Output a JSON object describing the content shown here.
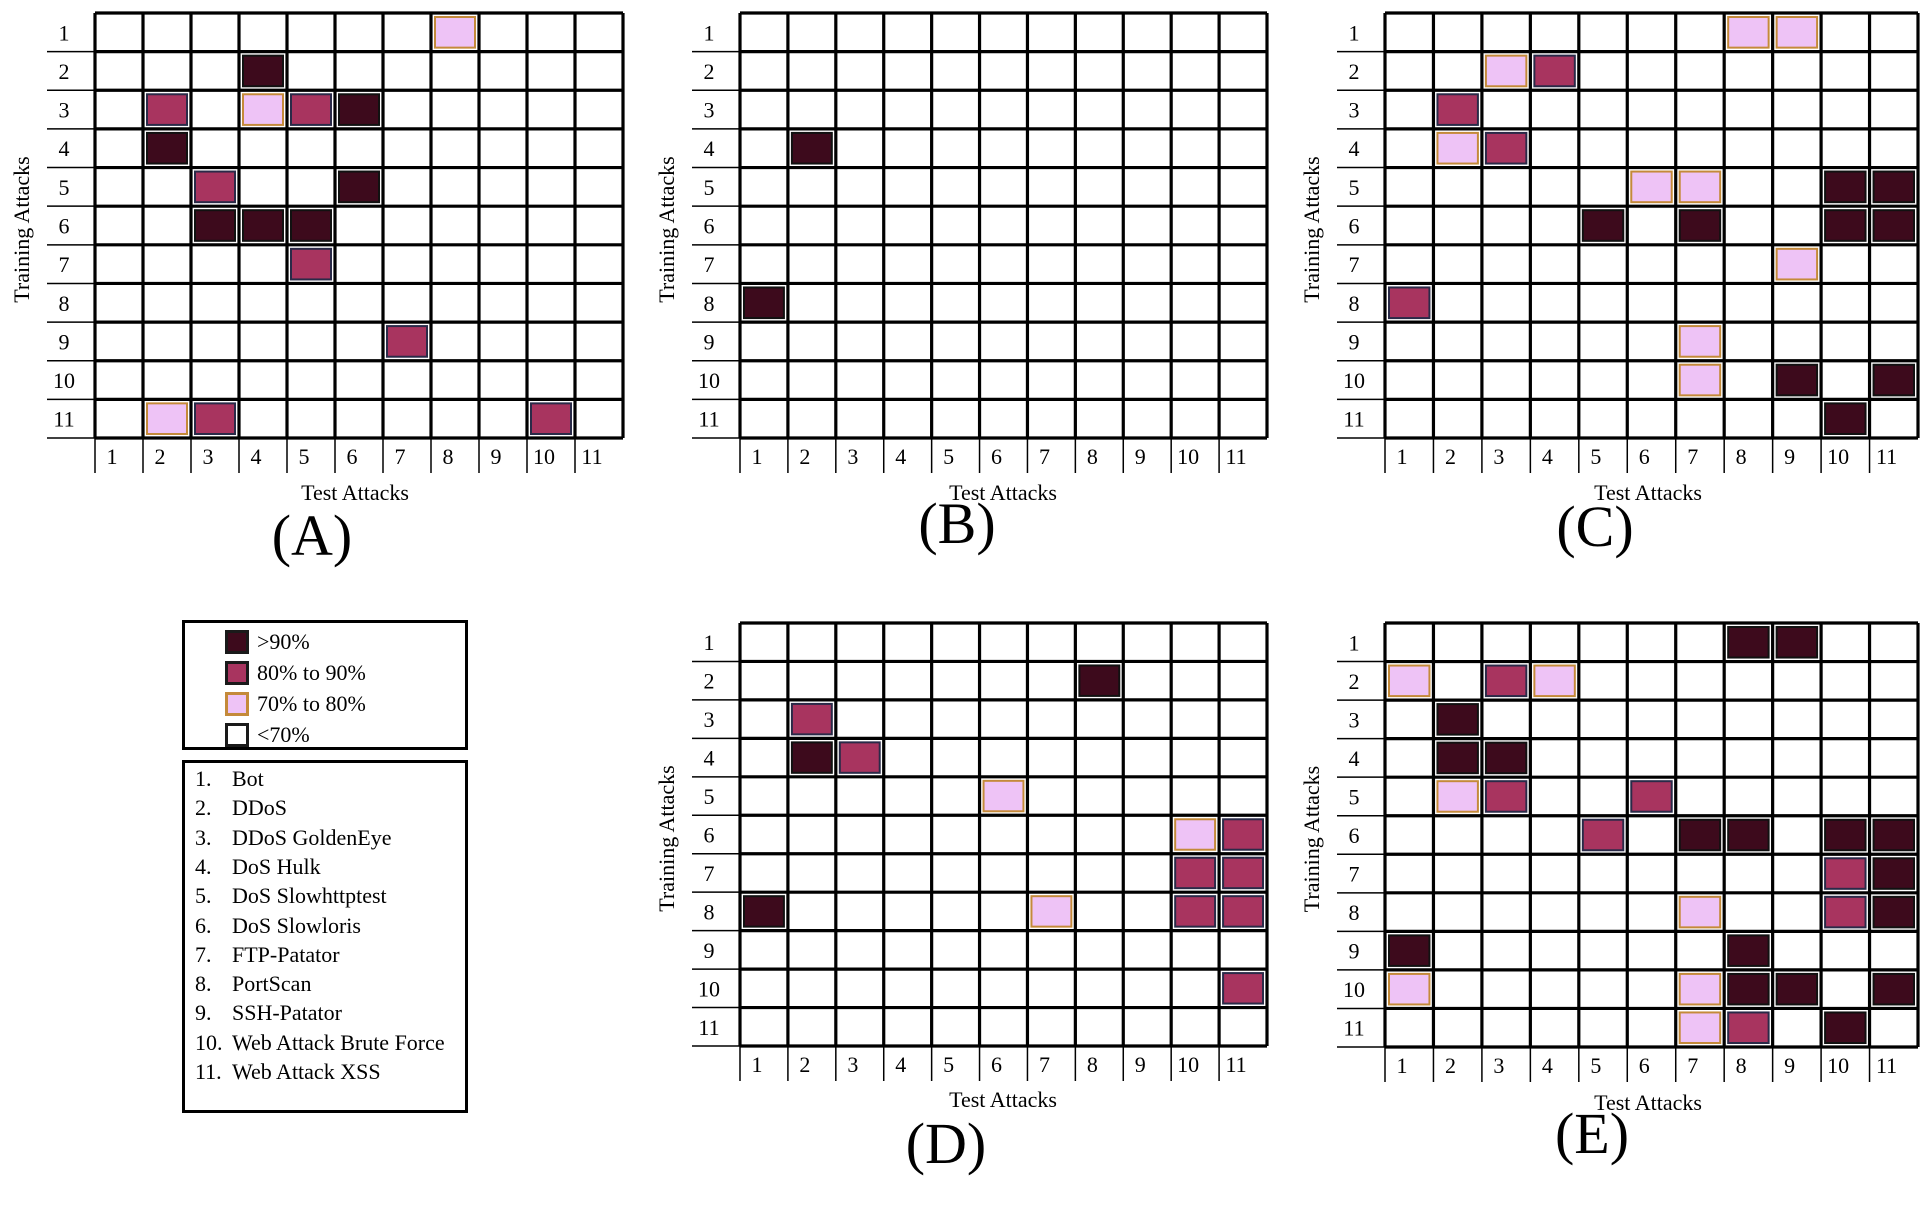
{
  "colors": {
    "gt90": "#3d0a1c",
    "b80_90": "#a8345f",
    "b70_80": "#eec3f6",
    "lt70": "#ffffff",
    "border_70_80": "#c48a3a",
    "border_80_90": "#2a2a48"
  },
  "legend": {
    "levels": [
      {
        "label": ">90%",
        "key": "gt90"
      },
      {
        "label": "80% to 90%",
        "key": "b80_90"
      },
      {
        "label": "70% to 80%",
        "key": "b70_80"
      },
      {
        "label": "<70%",
        "key": "lt70"
      }
    ],
    "attack_names": [
      {
        "num": "1.",
        "name": "Bot"
      },
      {
        "num": "2.",
        "name": "DDoS"
      },
      {
        "num": "3.",
        "name": "DDoS GoldenEye"
      },
      {
        "num": "4.",
        "name": "DoS Hulk"
      },
      {
        "num": "5.",
        "name": "DoS Slowhttptest"
      },
      {
        "num": "6.",
        "name": "DoS Slowloris"
      },
      {
        "num": "7.",
        "name": "FTP-Patator"
      },
      {
        "num": "8.",
        "name": "PortScan"
      },
      {
        "num": "9.",
        "name": "SSH-Patator"
      },
      {
        "num": "10.",
        "name": "Web Attack Brute Force"
      },
      {
        "num": "11.",
        "name": "Web Attack XSS"
      }
    ]
  },
  "chart_data": [
    {
      "type": "heatmap",
      "panel_label": "(A)",
      "xlabel": "Test Attacks",
      "ylabel": "Training Attacks",
      "x_ticks": [
        "1",
        "2",
        "3",
        "4",
        "5",
        "6",
        "7",
        "8",
        "9",
        "10",
        "11"
      ],
      "y_ticks": [
        "1",
        "2",
        "3",
        "4",
        "5",
        "6",
        "7",
        "8",
        "9",
        "10",
        "11"
      ],
      "cells": [
        {
          "train": 1,
          "test": 8,
          "level": "b70_80"
        },
        {
          "train": 2,
          "test": 4,
          "level": "gt90"
        },
        {
          "train": 3,
          "test": 2,
          "level": "b80_90"
        },
        {
          "train": 3,
          "test": 4,
          "level": "b70_80"
        },
        {
          "train": 3,
          "test": 5,
          "level": "b80_90"
        },
        {
          "train": 3,
          "test": 6,
          "level": "gt90"
        },
        {
          "train": 4,
          "test": 2,
          "level": "gt90"
        },
        {
          "train": 5,
          "test": 3,
          "level": "b80_90"
        },
        {
          "train": 5,
          "test": 6,
          "level": "gt90"
        },
        {
          "train": 6,
          "test": 3,
          "level": "gt90"
        },
        {
          "train": 6,
          "test": 4,
          "level": "gt90"
        },
        {
          "train": 6,
          "test": 5,
          "level": "gt90"
        },
        {
          "train": 7,
          "test": 5,
          "level": "b80_90"
        },
        {
          "train": 9,
          "test": 7,
          "level": "b80_90"
        },
        {
          "train": 11,
          "test": 2,
          "level": "b70_80"
        },
        {
          "train": 11,
          "test": 3,
          "level": "b80_90"
        },
        {
          "train": 11,
          "test": 10,
          "level": "b80_90"
        }
      ]
    },
    {
      "type": "heatmap",
      "panel_label": "(B)",
      "xlabel": "Test Attacks",
      "ylabel": "Training Attacks",
      "x_ticks": [
        "1",
        "2",
        "3",
        "4",
        "5",
        "6",
        "7",
        "8",
        "9",
        "10",
        "11"
      ],
      "y_ticks": [
        "1",
        "2",
        "3",
        "4",
        "5",
        "6",
        "7",
        "8",
        "9",
        "10",
        "11"
      ],
      "cells": [
        {
          "train": 4,
          "test": 2,
          "level": "gt90"
        },
        {
          "train": 8,
          "test": 1,
          "level": "gt90"
        }
      ]
    },
    {
      "type": "heatmap",
      "panel_label": "(C)",
      "xlabel": "Test Attacks",
      "ylabel": "Training Attacks",
      "x_ticks": [
        "1",
        "2",
        "3",
        "4",
        "5",
        "6",
        "7",
        "8",
        "9",
        "10",
        "11"
      ],
      "y_ticks": [
        "1",
        "2",
        "3",
        "4",
        "5",
        "6",
        "7",
        "8",
        "9",
        "10",
        "11"
      ],
      "cells": [
        {
          "train": 1,
          "test": 8,
          "level": "b70_80"
        },
        {
          "train": 1,
          "test": 9,
          "level": "b70_80"
        },
        {
          "train": 2,
          "test": 3,
          "level": "b70_80"
        },
        {
          "train": 2,
          "test": 4,
          "level": "b80_90"
        },
        {
          "train": 3,
          "test": 2,
          "level": "b80_90"
        },
        {
          "train": 4,
          "test": 2,
          "level": "b70_80"
        },
        {
          "train": 4,
          "test": 3,
          "level": "b80_90"
        },
        {
          "train": 5,
          "test": 6,
          "level": "b70_80"
        },
        {
          "train": 5,
          "test": 7,
          "level": "b70_80"
        },
        {
          "train": 5,
          "test": 10,
          "level": "gt90"
        },
        {
          "train": 5,
          "test": 11,
          "level": "gt90"
        },
        {
          "train": 6,
          "test": 5,
          "level": "gt90"
        },
        {
          "train": 6,
          "test": 7,
          "level": "gt90"
        },
        {
          "train": 6,
          "test": 10,
          "level": "gt90"
        },
        {
          "train": 6,
          "test": 11,
          "level": "gt90"
        },
        {
          "train": 7,
          "test": 9,
          "level": "b70_80"
        },
        {
          "train": 8,
          "test": 1,
          "level": "b80_90"
        },
        {
          "train": 9,
          "test": 7,
          "level": "b70_80"
        },
        {
          "train": 10,
          "test": 7,
          "level": "b70_80"
        },
        {
          "train": 10,
          "test": 9,
          "level": "gt90"
        },
        {
          "train": 10,
          "test": 11,
          "level": "gt90"
        },
        {
          "train": 11,
          "test": 10,
          "level": "gt90"
        }
      ]
    },
    {
      "type": "heatmap",
      "panel_label": "(D)",
      "xlabel": "Test Attacks",
      "ylabel": "Training Attacks",
      "x_ticks": [
        "1",
        "2",
        "3",
        "4",
        "5",
        "6",
        "7",
        "8",
        "9",
        "10",
        "11"
      ],
      "y_ticks": [
        "1",
        "2",
        "3",
        "4",
        "5",
        "6",
        "7",
        "8",
        "9",
        "10",
        "11"
      ],
      "cells": [
        {
          "train": 2,
          "test": 8,
          "level": "gt90"
        },
        {
          "train": 3,
          "test": 2,
          "level": "b80_90"
        },
        {
          "train": 4,
          "test": 2,
          "level": "gt90"
        },
        {
          "train": 4,
          "test": 3,
          "level": "b80_90"
        },
        {
          "train": 5,
          "test": 6,
          "level": "b70_80"
        },
        {
          "train": 6,
          "test": 10,
          "level": "b70_80"
        },
        {
          "train": 6,
          "test": 11,
          "level": "b80_90"
        },
        {
          "train": 7,
          "test": 10,
          "level": "b80_90"
        },
        {
          "train": 7,
          "test": 11,
          "level": "b80_90"
        },
        {
          "train": 8,
          "test": 1,
          "level": "gt90"
        },
        {
          "train": 8,
          "test": 7,
          "level": "b70_80"
        },
        {
          "train": 8,
          "test": 10,
          "level": "b80_90"
        },
        {
          "train": 8,
          "test": 11,
          "level": "b80_90"
        },
        {
          "train": 10,
          "test": 11,
          "level": "b80_90"
        }
      ]
    },
    {
      "type": "heatmap",
      "panel_label": "(E)",
      "xlabel": "Test Attacks",
      "ylabel": "Training Attacks",
      "x_ticks": [
        "1",
        "2",
        "3",
        "4",
        "5",
        "6",
        "7",
        "8",
        "9",
        "10",
        "11"
      ],
      "y_ticks": [
        "1",
        "2",
        "3",
        "4",
        "5",
        "6",
        "7",
        "8",
        "9",
        "10",
        "11"
      ],
      "cells": [
        {
          "train": 1,
          "test": 8,
          "level": "gt90"
        },
        {
          "train": 1,
          "test": 9,
          "level": "gt90"
        },
        {
          "train": 2,
          "test": 1,
          "level": "b70_80"
        },
        {
          "train": 2,
          "test": 3,
          "level": "b80_90"
        },
        {
          "train": 2,
          "test": 4,
          "level": "b70_80"
        },
        {
          "train": 3,
          "test": 2,
          "level": "gt90"
        },
        {
          "train": 4,
          "test": 2,
          "level": "gt90"
        },
        {
          "train": 4,
          "test": 3,
          "level": "gt90"
        },
        {
          "train": 5,
          "test": 2,
          "level": "b70_80"
        },
        {
          "train": 5,
          "test": 3,
          "level": "b80_90"
        },
        {
          "train": 5,
          "test": 6,
          "level": "b80_90"
        },
        {
          "train": 6,
          "test": 5,
          "level": "b80_90"
        },
        {
          "train": 6,
          "test": 7,
          "level": "gt90"
        },
        {
          "train": 6,
          "test": 8,
          "level": "gt90"
        },
        {
          "train": 6,
          "test": 10,
          "level": "gt90"
        },
        {
          "train": 6,
          "test": 11,
          "level": "gt90"
        },
        {
          "train": 7,
          "test": 10,
          "level": "b80_90"
        },
        {
          "train": 7,
          "test": 11,
          "level": "gt90"
        },
        {
          "train": 8,
          "test": 7,
          "level": "b70_80"
        },
        {
          "train": 8,
          "test": 10,
          "level": "b80_90"
        },
        {
          "train": 8,
          "test": 11,
          "level": "gt90"
        },
        {
          "train": 9,
          "test": 1,
          "level": "gt90"
        },
        {
          "train": 9,
          "test": 8,
          "level": "gt90"
        },
        {
          "train": 10,
          "test": 1,
          "level": "b70_80"
        },
        {
          "train": 10,
          "test": 7,
          "level": "b70_80"
        },
        {
          "train": 10,
          "test": 8,
          "level": "gt90"
        },
        {
          "train": 10,
          "test": 9,
          "level": "gt90"
        },
        {
          "train": 10,
          "test": 11,
          "level": "gt90"
        },
        {
          "train": 11,
          "test": 7,
          "level": "b70_80"
        },
        {
          "train": 11,
          "test": 8,
          "level": "b80_90"
        },
        {
          "train": 11,
          "test": 10,
          "level": "gt90"
        }
      ]
    }
  ]
}
